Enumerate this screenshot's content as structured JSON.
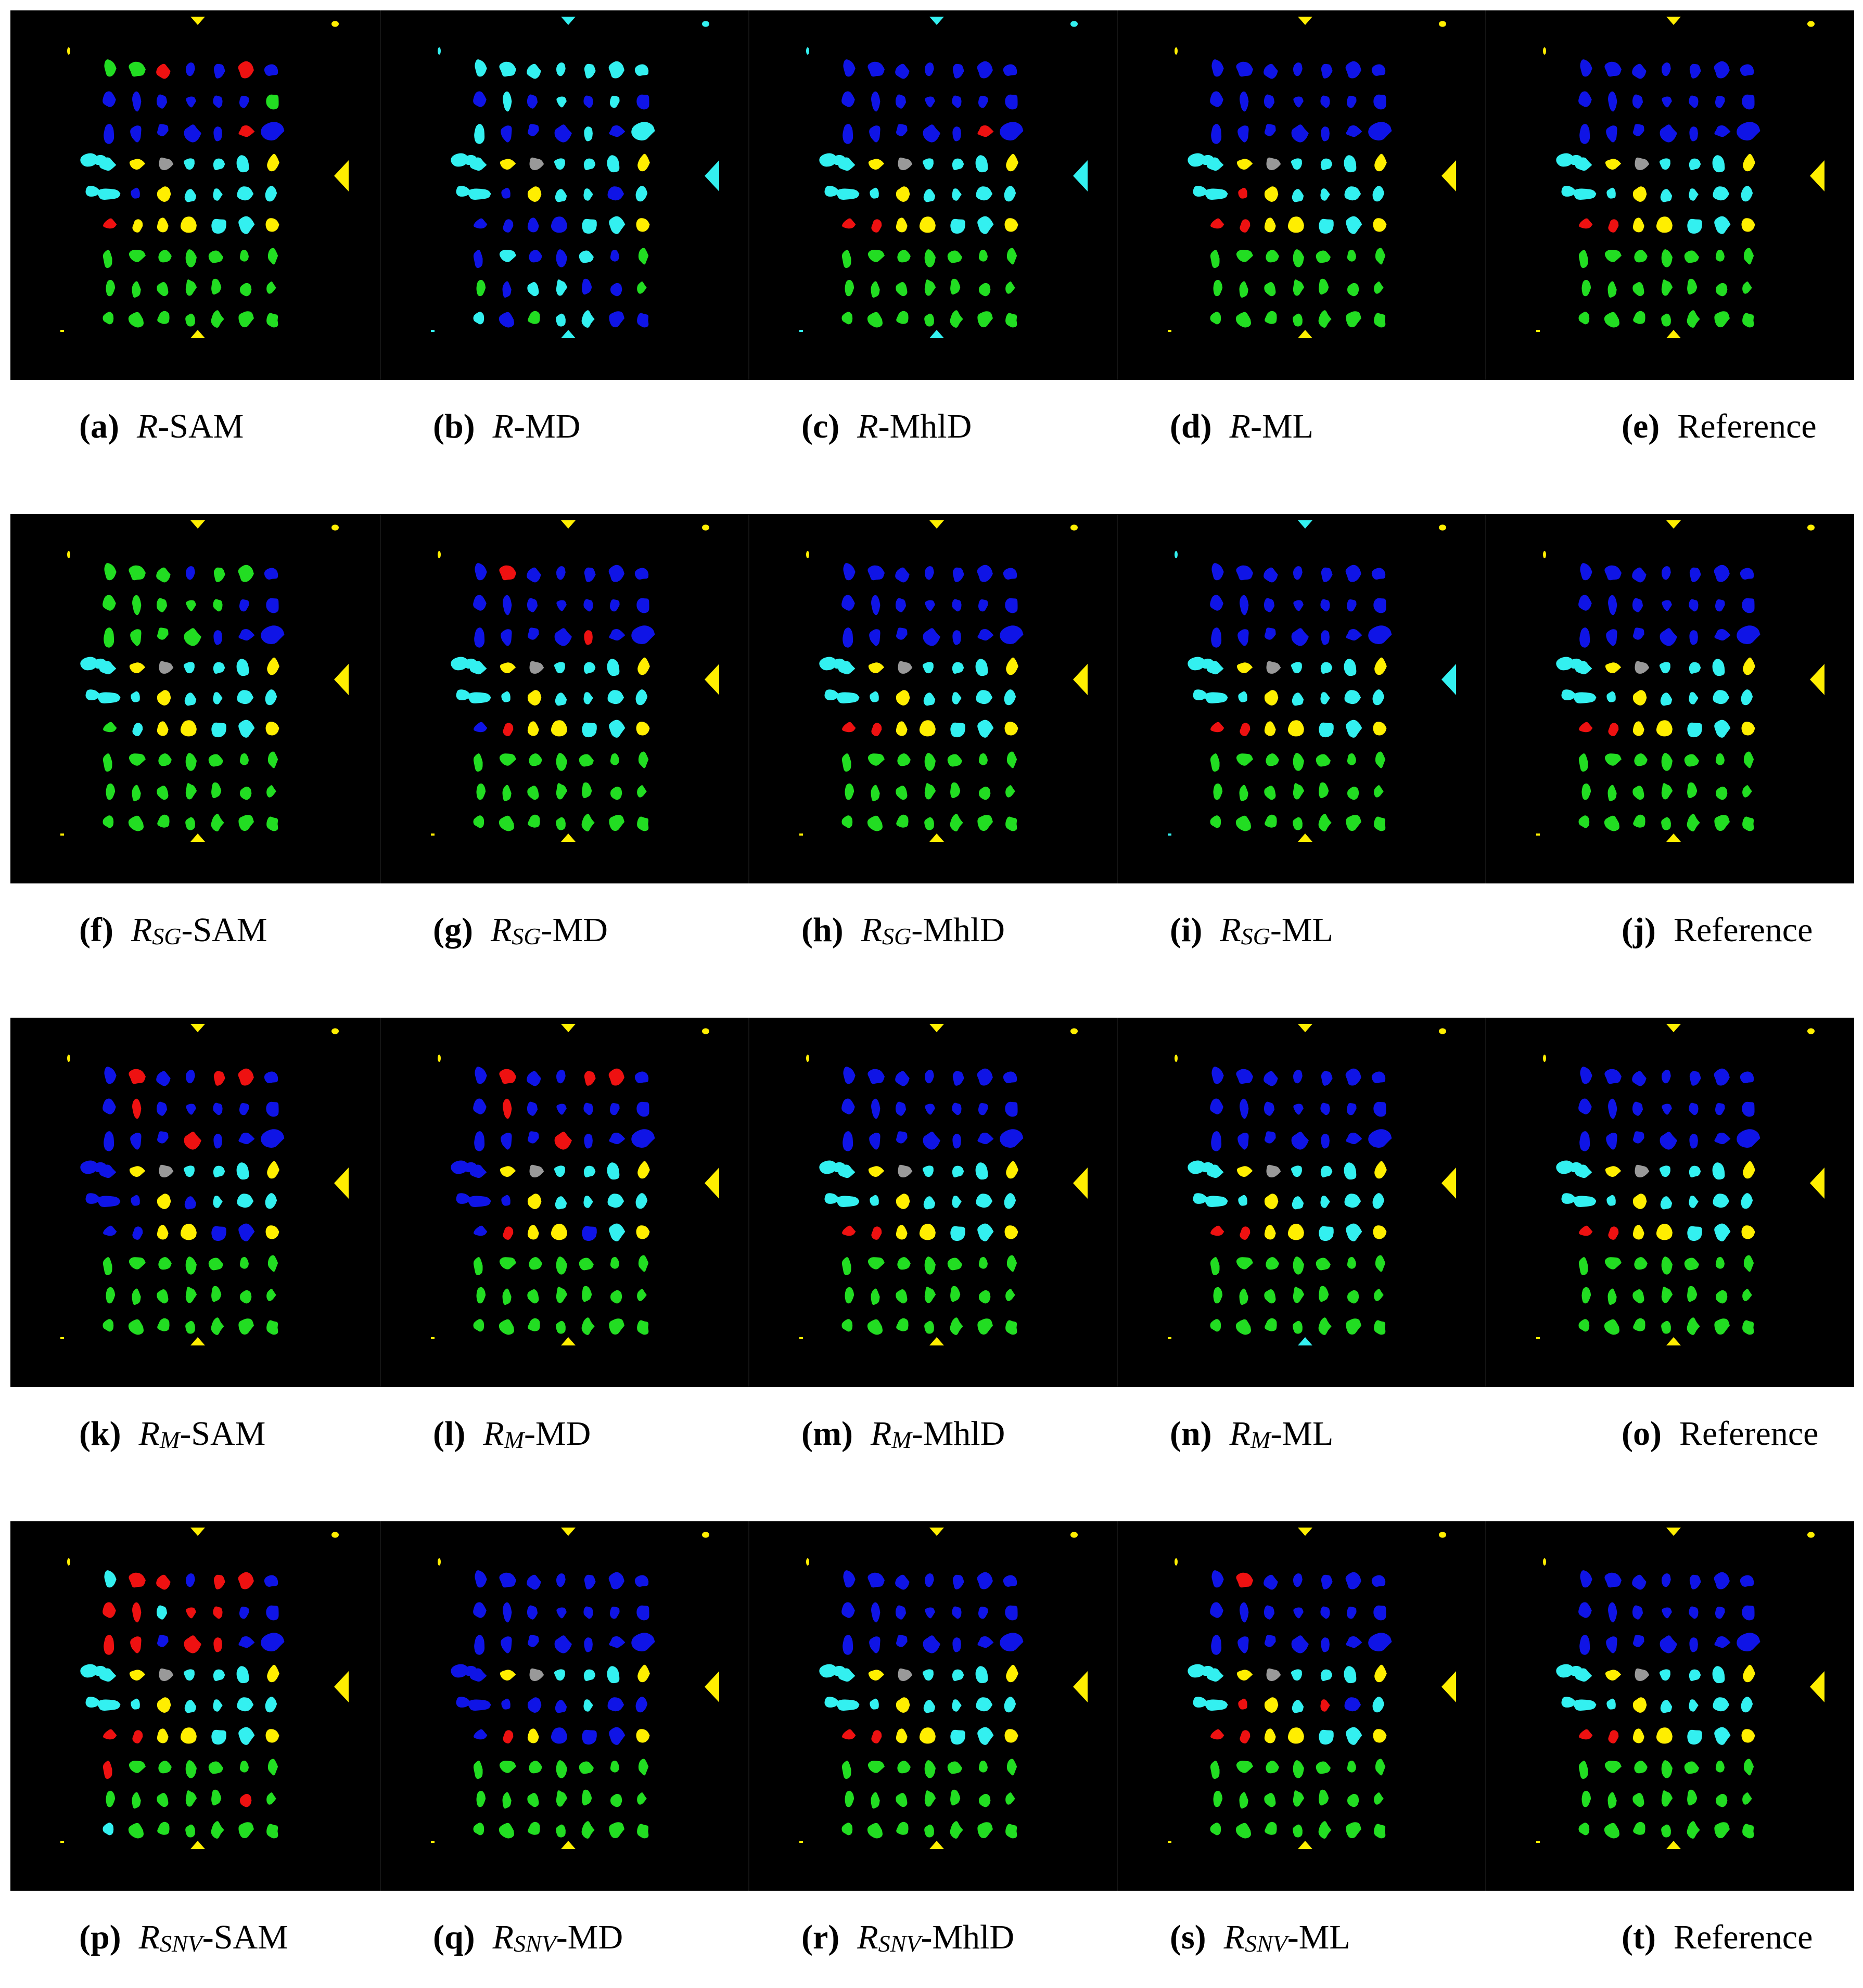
{
  "palette": {
    "background": "#000000",
    "green": "#22dd22",
    "blue": "#0f14e6",
    "cyan": "#33f0f0",
    "yellow": "#ffee00",
    "red": "#ee1111",
    "gray": "#999999"
  },
  "class_codes": {
    "G": "green",
    "B": "blue",
    "C": "cyan",
    "Y": "yellow",
    "R": "red",
    "S": "gray"
  },
  "reference_map": [
    "BBBBBBB",
    "BBBBBBB",
    "BBBBBBB",
    "CYSCCCY",
    "CCYCCCC",
    "RRYYCCY",
    "GGGGGGG",
    "GGGGGGG",
    "GGGGGGG"
  ],
  "rows": [
    {
      "panels": [
        {
          "letter": "(a)",
          "main": "R",
          "sub": "",
          "method": "-SAM",
          "markers": "YYYY",
          "edits": {
            "0,1": "G",
            "0,2": "R",
            "0,6": "B",
            "0,5": "R",
            "0,0": "G",
            "0,4": "B",
            "1,6": "G",
            "2,5": "R",
            "2,1": "B",
            "5,1": "Y",
            "4,1": "B",
            "6,0": "G"
          }
        },
        {
          "letter": "(b)",
          "main": "R",
          "sub": "",
          "method": "-MD",
          "markers": "CCCC",
          "edits": {
            "0,0": "C",
            "0,1": "C",
            "0,2": "C",
            "0,3": "C",
            "0,4": "C",
            "0,5": "C",
            "0,6": "C",
            "1,1": "C",
            "1,3": "C",
            "1,5": "C",
            "2,0": "C",
            "2,4": "C",
            "2,6": "C",
            "3,1": "Y",
            "4,1": "B",
            "4,2": "Y",
            "4,5": "B",
            "5,0": "B",
            "5,1": "B",
            "5,2": "B",
            "5,3": "B",
            "5,4": "C",
            "6,0": "B",
            "6,1": "C",
            "6,2": "B",
            "6,3": "B",
            "6,4": "C",
            "6,5": "B",
            "7,0": "G",
            "7,1": "B",
            "7,2": "C",
            "7,3": "C",
            "7,4": "B",
            "7,5": "B",
            "8,0": "C",
            "8,1": "B",
            "8,2": "G",
            "8,3": "C",
            "8,4": "C",
            "8,5": "B",
            "8,6": "B"
          }
        },
        {
          "letter": "(c)",
          "main": "R",
          "sub": "",
          "method": "-MhlD",
          "markers": "CCCC",
          "edits": {
            "2,5": "R",
            "5,0": "R",
            "5,1": "R"
          }
        },
        {
          "letter": "(d)",
          "main": "R",
          "sub": "",
          "method": "-ML",
          "markers": "YYYY",
          "edits": {
            "4,1": "R",
            "5,0": "R"
          }
        },
        {
          "letter": "(e)",
          "main": "",
          "sub": "",
          "method": "Reference",
          "markers": "YYYY",
          "edits": {}
        }
      ]
    },
    {
      "panels": [
        {
          "letter": "(f)",
          "main": "R",
          "sub": "SG",
          "method": "-SAM",
          "markers": "YYYY",
          "edits": {
            "0,0": "G",
            "0,1": "G",
            "0,2": "G",
            "0,4": "G",
            "0,5": "G",
            "1,0": "G",
            "1,1": "G",
            "1,2": "G",
            "1,3": "G",
            "1,4": "G",
            "2,0": "G",
            "2,1": "G",
            "2,2": "G",
            "2,3": "G",
            "5,0": "G",
            "5,1": "C"
          }
        },
        {
          "letter": "(g)",
          "main": "R",
          "sub": "SG",
          "method": "-MD",
          "markers": "YYYY",
          "edits": {
            "0,1": "R",
            "2,4": "R",
            "5,0": "B",
            "5,1": "R"
          }
        },
        {
          "letter": "(h)",
          "main": "R",
          "sub": "SG",
          "method": "-MhlD",
          "markers": "YYYY",
          "edits": {
            "5,1": "R"
          }
        },
        {
          "letter": "(i)",
          "main": "R",
          "sub": "SG",
          "method": "-ML",
          "markers": "CCYY",
          "edits": {
            "5,0": "R",
            "5,1": "R"
          }
        },
        {
          "letter": "(j)",
          "main": "",
          "sub": "",
          "method": "Reference",
          "markers": "YYYY",
          "edits": {}
        }
      ]
    },
    {
      "panels": [
        {
          "letter": "(k)",
          "main": "R",
          "sub": "M",
          "method": "-SAM",
          "markers": "YYYY",
          "edits": {
            "0,1": "R",
            "0,4": "R",
            "0,5": "R",
            "1,0": "B",
            "1,1": "R",
            "2,3": "R",
            "3,0": "B",
            "4,0": "B",
            "4,1": "B",
            "4,3": "B",
            "5,0": "B",
            "5,1": "B",
            "5,4": "B",
            "5,5": "B"
          }
        },
        {
          "letter": "(l)",
          "main": "R",
          "sub": "M",
          "method": "-MD",
          "markers": "YYYY",
          "edits": {
            "0,1": "R",
            "0,4": "R",
            "0,5": "R",
            "1,1": "R",
            "2,3": "R",
            "3,0": "B",
            "4,0": "B",
            "4,1": "B",
            "5,0": "B",
            "5,4": "B"
          }
        },
        {
          "letter": "(m)",
          "main": "R",
          "sub": "M",
          "method": "-MhlD",
          "markers": "YYYY",
          "edits": {
            "5,1": "R"
          }
        },
        {
          "letter": "(n)",
          "main": "R",
          "sub": "M",
          "method": "-ML",
          "markers": "YYCY",
          "edits": {
            "5,0": "R",
            "5,1": "R"
          }
        },
        {
          "letter": "(o)",
          "main": "",
          "sub": "",
          "method": "Reference",
          "markers": "YYYY",
          "edits": {}
        }
      ]
    },
    {
      "panels": [
        {
          "letter": "(p)",
          "main": "R",
          "sub": "SNV",
          "method": "-SAM",
          "markers": "YYYY",
          "edits": {
            "0,0": "C",
            "0,1": "R",
            "0,2": "R",
            "0,4": "R",
            "0,5": "R",
            "1,0": "R",
            "1,1": "R",
            "1,2": "C",
            "1,3": "R",
            "1,4": "R",
            "2,0": "R",
            "2,1": "R",
            "2,3": "R",
            "2,4": "R",
            "5,0": "R",
            "6,0": "R",
            "7,5": "R",
            "8,0": "C"
          }
        },
        {
          "letter": "(q)",
          "main": "R",
          "sub": "SNV",
          "method": "-MD",
          "markers": "YYYY",
          "edits": {
            "3,0": "B",
            "4,0": "B",
            "4,1": "B",
            "4,2": "B",
            "4,3": "B",
            "4,5": "B",
            "4,6": "B",
            "5,0": "B",
            "5,3": "B",
            "5,4": "B",
            "5,5": "B"
          }
        },
        {
          "letter": "(r)",
          "main": "R",
          "sub": "SNV",
          "method": "-MhlD",
          "markers": "YYYY",
          "edits": {
            "5,0": "R",
            "5,1": "R"
          }
        },
        {
          "letter": "(s)",
          "main": "R",
          "sub": "SNV",
          "method": "-ML",
          "markers": "YYYY",
          "edits": {
            "0,1": "R",
            "4,1": "R",
            "4,2": "Y",
            "4,3": "C",
            "4,4": "R",
            "4,5": "B",
            "5,0": "R",
            "5,1": "R",
            "5,2": "Y"
          }
        },
        {
          "letter": "(t)",
          "main": "",
          "sub": "",
          "method": "Reference",
          "markers": "YYYY",
          "edits": {}
        }
      ]
    }
  ]
}
